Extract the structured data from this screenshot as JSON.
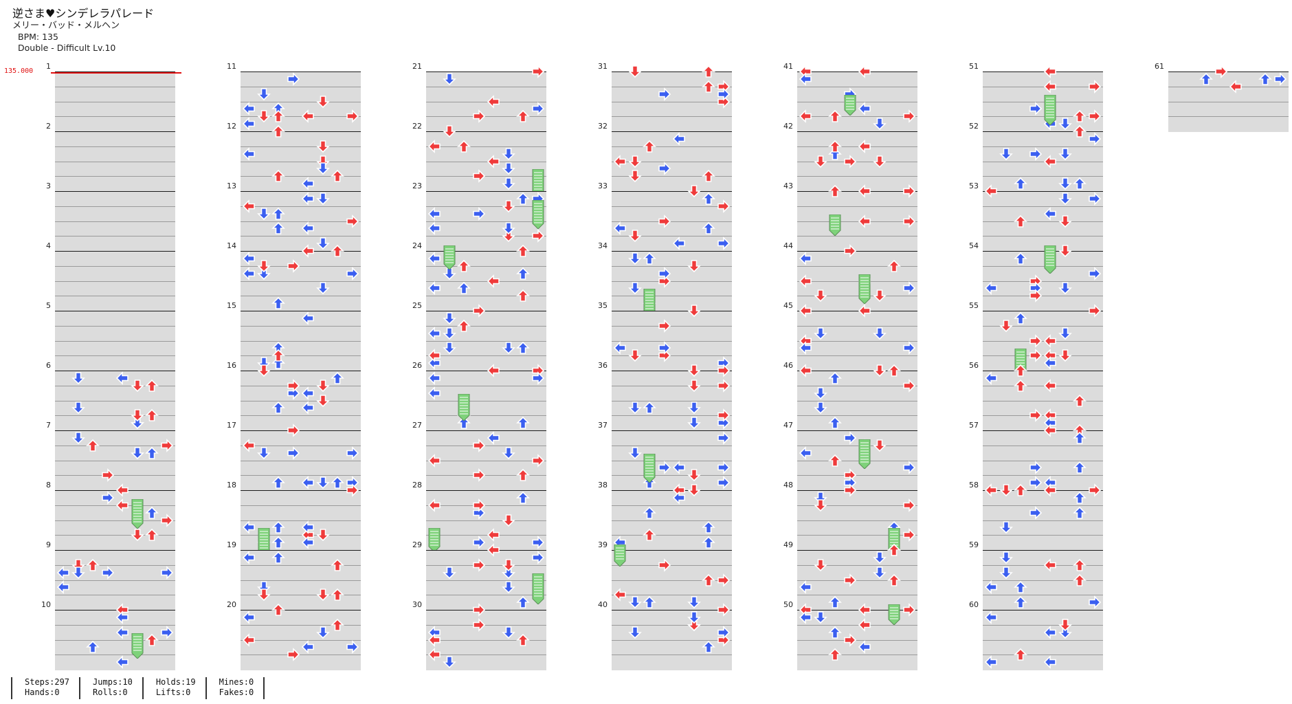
{
  "song": {
    "title": "逆さま♥シンデレラパレード",
    "artist": "メリー・バッド・メルヘン",
    "bpm_text": "BPM: 135",
    "chart_text": "Double - Difficult  Lv.10"
  },
  "bpm_marker": "135.000",
  "stats": {
    "steps": "Steps:297",
    "hands": "Hands:0",
    "jumps": "Jumps:10",
    "rolls": "Rolls:0",
    "holds": "Holds:19",
    "lifts": "Lifts:0",
    "mines": "Mines:0",
    "fakes": "Fakes:0"
  },
  "colors": {
    "quarter": "#ef3b3b",
    "eighth": "#3b5ff0",
    "hold": "#7ed27a",
    "band": "#dcdcdc"
  },
  "icons": {
    "arrow": "arrow-icon",
    "hold": "hold-freeze-icon",
    "bpm": "bpm-change-marker"
  },
  "measures": [
    "1",
    "2",
    "3",
    "4",
    "5",
    "6",
    "7",
    "8",
    "9",
    "10",
    "11",
    "12",
    "13",
    "14",
    "15",
    "16",
    "17",
    "18",
    "19",
    "20",
    "21",
    "22",
    "23",
    "24",
    "25",
    "26",
    "27",
    "28",
    "29",
    "30",
    "31",
    "32",
    "33",
    "34",
    "35",
    "36",
    "37",
    "38",
    "39",
    "40",
    "41",
    "42",
    "43",
    "44",
    "45",
    "46",
    "47",
    "48",
    "49",
    "50",
    "51",
    "52",
    "53",
    "54",
    "55",
    "56",
    "57",
    "58",
    "59",
    "60",
    "61"
  ]
}
